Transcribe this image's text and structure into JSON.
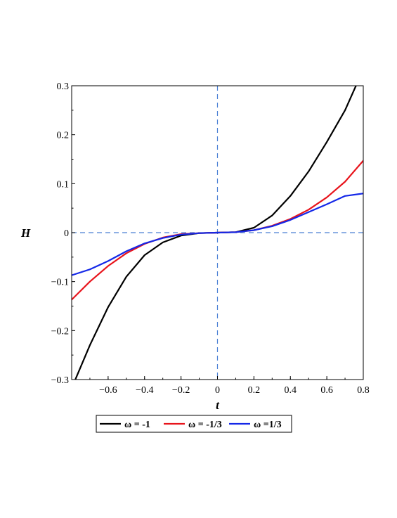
{
  "chart_data": {
    "type": "line",
    "xlabel": "t",
    "ylabel": "H",
    "xlim": [
      -0.8,
      0.8
    ],
    "ylim": [
      -0.3,
      0.3
    ],
    "xticks": [
      -0.6,
      -0.4,
      -0.2,
      0,
      0.2,
      0.4,
      0.6,
      0.8
    ],
    "xtick_labels": [
      "−0.6",
      "−0.4",
      "−0.2",
      "0",
      "0.2",
      "0.4",
      "0.6",
      "0.8"
    ],
    "yticks": [
      -0.3,
      -0.2,
      -0.1,
      0,
      0.1,
      0.2,
      0.3
    ],
    "ytick_labels": [
      "−0.3",
      "−0.2",
      "−0.1",
      "0",
      "0.1",
      "0.2",
      "0.3"
    ],
    "reference_lines": {
      "x": 0,
      "y": 0,
      "color": "#4a7fd4",
      "style": "dashed"
    },
    "legend_position": "bottom",
    "series": [
      {
        "name": "ω = -1",
        "color": "#000000",
        "x": [
          -0.78,
          -0.7,
          -0.6,
          -0.5,
          -0.4,
          -0.3,
          -0.2,
          -0.1,
          0,
          0.1,
          0.2,
          0.3,
          0.4,
          0.5,
          0.6,
          0.7,
          0.76
        ],
        "y": [
          -0.3,
          -0.23,
          -0.152,
          -0.09,
          -0.046,
          -0.02,
          -0.006,
          -0.001,
          0,
          0.001,
          0.01,
          0.035,
          0.075,
          0.125,
          0.185,
          0.25,
          0.3
        ]
      },
      {
        "name": "ω = -1/3",
        "color": "#e8141c",
        "x": [
          -0.8,
          -0.7,
          -0.6,
          -0.5,
          -0.4,
          -0.3,
          -0.2,
          -0.1,
          0,
          0.1,
          0.2,
          0.3,
          0.4,
          0.5,
          0.6,
          0.7,
          0.8
        ],
        "y": [
          -0.137,
          -0.1,
          -0.068,
          -0.042,
          -0.023,
          -0.01,
          -0.003,
          -0.001,
          0,
          0.001,
          0.005,
          0.014,
          0.028,
          0.047,
          0.072,
          0.104,
          0.147
        ]
      },
      {
        "name": "ω =1/3",
        "color": "#1428e8",
        "x": [
          -0.8,
          -0.7,
          -0.6,
          -0.5,
          -0.4,
          -0.3,
          -0.2,
          -0.1,
          0,
          0.1,
          0.2,
          0.3,
          0.4,
          0.5,
          0.6,
          0.7,
          0.8
        ],
        "y": [
          -0.087,
          -0.075,
          -0.058,
          -0.038,
          -0.022,
          -0.011,
          -0.004,
          -0.001,
          0,
          0.001,
          0.005,
          0.013,
          0.026,
          0.042,
          0.058,
          0.075,
          0.08
        ]
      }
    ]
  }
}
